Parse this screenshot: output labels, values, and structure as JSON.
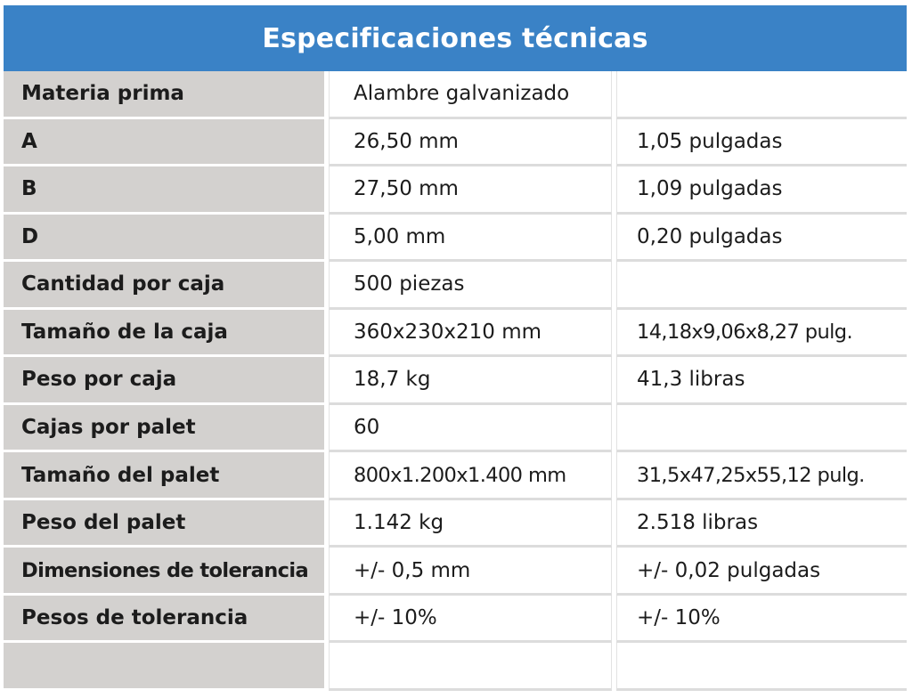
{
  "header": {
    "title": "Especificaciones técnicas"
  },
  "colors": {
    "header_bg": "#3a82c6",
    "label_bg": "#d3d1cf",
    "text": "#1c1c1c"
  },
  "rows": [
    {
      "label": "Materia prima",
      "metric": "Alambre galvanizado",
      "imperial": ""
    },
    {
      "label": "A",
      "metric": "26,50 mm",
      "imperial": "1,05 pulgadas"
    },
    {
      "label": "B",
      "metric": "27,50 mm",
      "imperial": "1,09 pulgadas"
    },
    {
      "label": "D",
      "metric": "5,00 mm",
      "imperial": "0,20 pulgadas"
    },
    {
      "label": "Cantidad por caja",
      "metric": "500 piezas",
      "imperial": ""
    },
    {
      "label": "Tamaño de la caja",
      "metric": "360x230x210 mm",
      "imperial": "14,18x9,06x8,27 pulg."
    },
    {
      "label": "Peso por caja",
      "metric": "18,7 kg",
      "imperial": "41,3 libras"
    },
    {
      "label": "Cajas por palet",
      "metric": "60",
      "imperial": ""
    },
    {
      "label": "Tamaño del palet",
      "metric": "800x1.200x1.400 mm",
      "imperial": "31,5x47,25x55,12 pulg."
    },
    {
      "label": "Peso del palet",
      "metric": "1.142 kg",
      "imperial": "2.518 libras"
    },
    {
      "label": "Dimensiones de tolerancia",
      "metric": "+/- 0,5 mm",
      "imperial": "+/- 0,02 pulgadas"
    },
    {
      "label": "Pesos de tolerancia",
      "metric": "+/- 10%",
      "imperial": "+/- 10%"
    },
    {
      "label": "",
      "metric": "",
      "imperial": ""
    }
  ]
}
